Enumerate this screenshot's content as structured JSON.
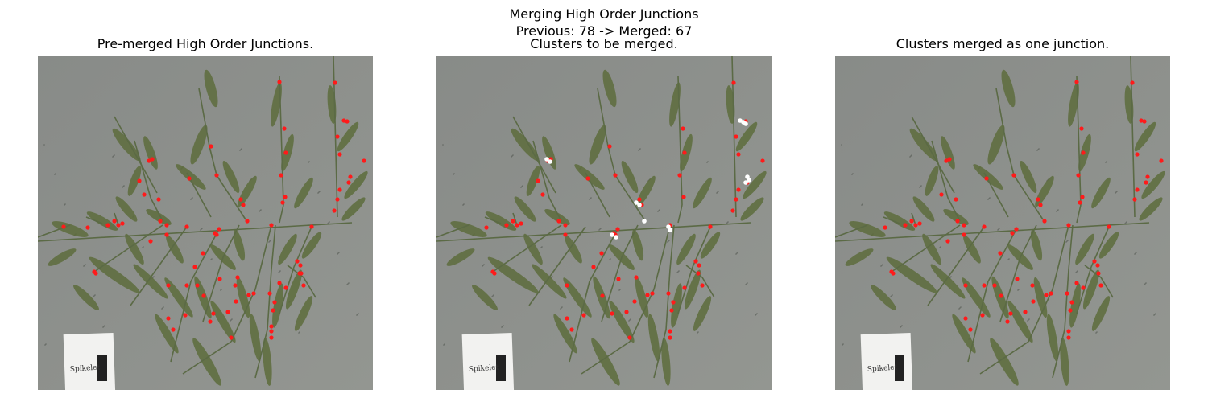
{
  "figure": {
    "suptitle_line1": "Merging High Order Junctions",
    "suptitle_line2": "Previous: 78 -> Merged: 67"
  },
  "panels": [
    {
      "title": "Pre-merged High Order Junctions."
    },
    {
      "title": "Clusters to be merged."
    },
    {
      "title": "Clusters merged as one junction."
    }
  ],
  "colors": {
    "background": "#8b8e8b",
    "branch": "#5b6a45",
    "leaf": "#5d6c3c",
    "junction_marker": "#ff1a1a",
    "cluster_marker": "#ffffff",
    "label_card": "#f2f2f0"
  },
  "label_card": {
    "text": "Spikelet"
  }
}
